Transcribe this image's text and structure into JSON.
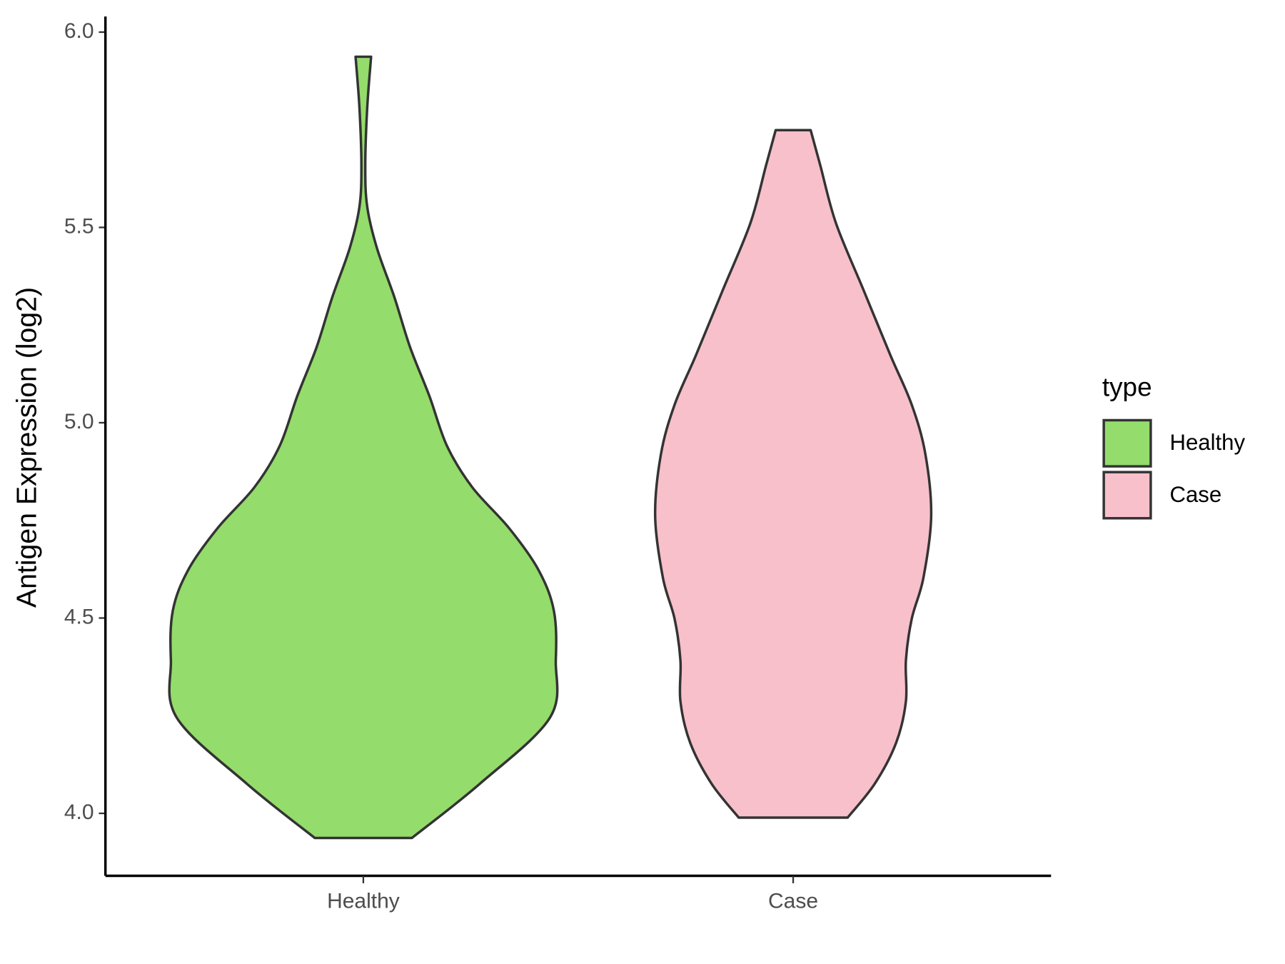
{
  "chart_data": {
    "type": "violin",
    "y_label": "Antigen Expression (log2)",
    "legend_title": "type",
    "categories": [
      "Healthy",
      "Case"
    ],
    "series": [
      {
        "name": "Healthy",
        "color": "#94dc6b",
        "values": [
          3.937,
          4.076,
          4.245,
          4.392,
          4.519,
          4.624,
          4.73,
          4.835,
          4.941,
          5.068,
          5.194,
          5.321,
          5.447,
          5.553,
          5.658,
          5.806,
          5.937
        ],
        "density": [
          0.25,
          0.6,
          0.96,
          0.99,
          0.98,
          0.9,
          0.75,
          0.56,
          0.43,
          0.34,
          0.24,
          0.16,
          0.07,
          0.02,
          0.01,
          0.02,
          0.04
        ]
      },
      {
        "name": "Case",
        "color": "#f7c0cb",
        "values": [
          3.989,
          4.076,
          4.181,
          4.287,
          4.392,
          4.498,
          4.603,
          4.762,
          4.92,
          5.046,
          5.173,
          5.342,
          5.511,
          5.658,
          5.749
        ],
        "density": [
          0.28,
          0.42,
          0.53,
          0.58,
          0.58,
          0.61,
          0.67,
          0.71,
          0.68,
          0.61,
          0.5,
          0.36,
          0.22,
          0.14,
          0.09
        ]
      }
    ],
    "ylim": [
      3.84,
      6.04
    ],
    "yticks": [
      {
        "value": 4,
        "label": "4.0"
      },
      4.5,
      {
        "value": 5,
        "label": "5.0"
      },
      5.5,
      {
        "value": 6,
        "label": "6.0"
      }
    ],
    "legend_position": "right"
  }
}
